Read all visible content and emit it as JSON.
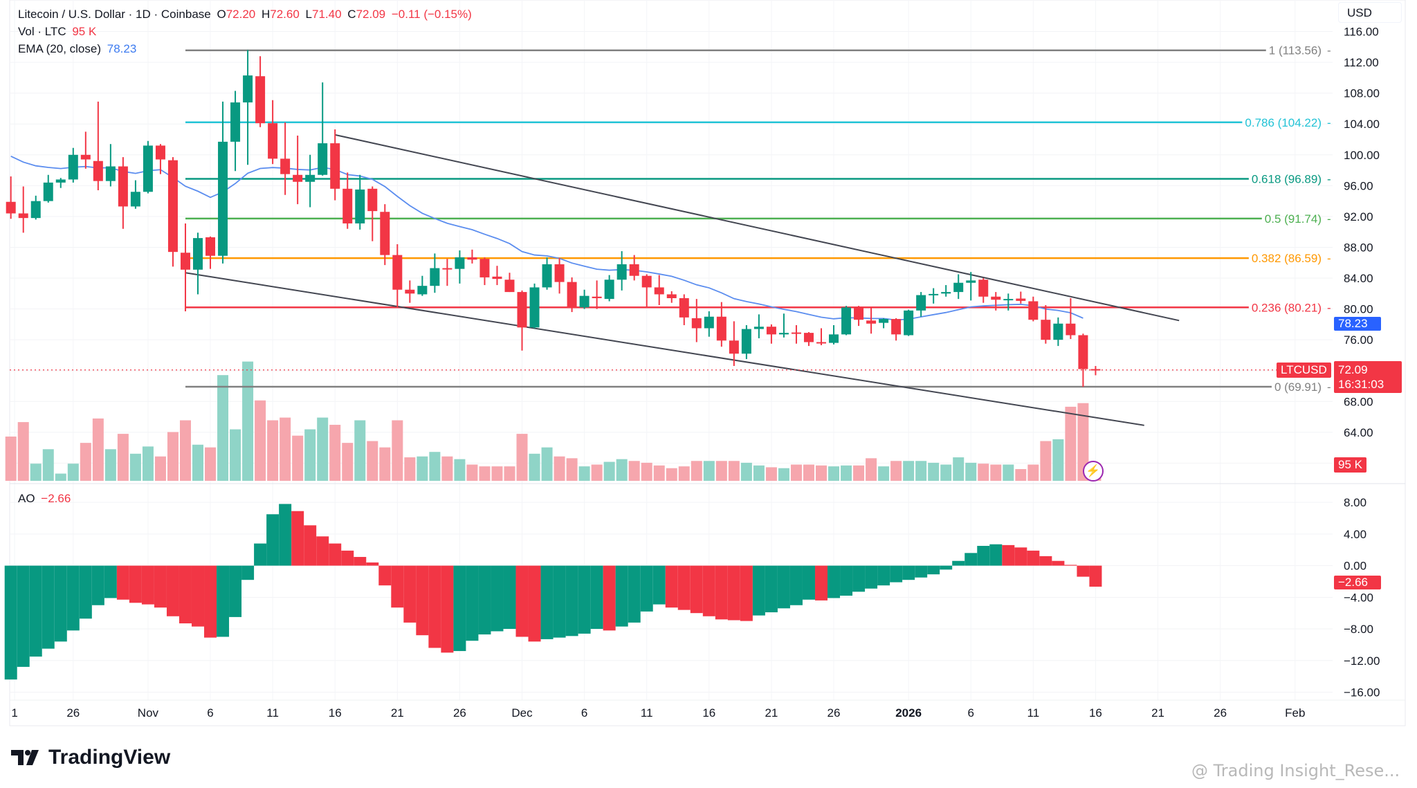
{
  "header": {
    "symbol": "Litecoin / U.S. Dollar · 1D · Coinbase",
    "o_label": "O",
    "o": "72.20",
    "h_label": "H",
    "h": "72.60",
    "l_label": "L",
    "l": "71.40",
    "c_label": "C",
    "c": "72.09",
    "change": "−0.11 (−0.15%)"
  },
  "volume_legend": {
    "label": "Vol · LTC",
    "value": "95 K"
  },
  "ema_legend": {
    "label": "EMA (20, close)",
    "value": "78.23"
  },
  "ao_legend": {
    "label": "AO",
    "value": "−2.66"
  },
  "currency_button": "USD",
  "price_tags": {
    "ema": "78.23",
    "symbol": "LTCUSD",
    "last": "72.09",
    "countdown": "16:31:03",
    "volume": "95 K",
    "ao": "−2.66"
  },
  "branding": {
    "logo": "TradingView",
    "watermark": "@ Trading Insight_Rese..."
  },
  "colors": {
    "up": "#089981",
    "down": "#f23645",
    "ema": "#5b8def",
    "tag_blue": "#2962ff",
    "trendline": "#434651"
  },
  "chart_data": {
    "type": "candlestick",
    "title": "Litecoin / U.S. Dollar · 1D · Coinbase",
    "start_date": "2025-10-21",
    "end_date": "2026-01-16",
    "ohlc": [
      [
        93.9,
        97.2,
        91.7,
        92.4
      ],
      [
        92.4,
        95.9,
        89.9,
        91.8
      ],
      [
        91.8,
        94.7,
        91.6,
        94.0
      ],
      [
        94.0,
        97.4,
        93.8,
        96.4
      ],
      [
        96.4,
        97.0,
        95.7,
        96.8
      ],
      [
        96.8,
        100.9,
        96.4,
        100.0
      ],
      [
        100.0,
        103.0,
        98.2,
        99.4
      ],
      [
        99.2,
        106.9,
        95.4,
        96.6
      ],
      [
        96.6,
        101.4,
        95.9,
        98.5
      ],
      [
        98.5,
        99.7,
        90.4,
        93.3
      ],
      [
        93.3,
        96.7,
        93.0,
        95.2
      ],
      [
        95.2,
        101.8,
        95.0,
        101.2
      ],
      [
        101.2,
        101.4,
        97.5,
        99.4
      ],
      [
        99.3,
        99.7,
        85.5,
        87.4
      ],
      [
        87.3,
        91.1,
        79.7,
        85.1
      ],
      [
        85.1,
        89.9,
        81.9,
        89.2
      ],
      [
        89.3,
        89.4,
        85.2,
        86.9
      ],
      [
        86.9,
        106.9,
        85.9,
        101.7
      ],
      [
        101.7,
        108.3,
        97.9,
        106.8
      ],
      [
        106.8,
        113.6,
        98.7,
        110.3
      ],
      [
        110.2,
        112.8,
        103.6,
        104.1
      ],
      [
        104.1,
        107.1,
        98.8,
        99.5
      ],
      [
        99.5,
        104.2,
        94.8,
        97.5
      ],
      [
        97.4,
        102.5,
        93.6,
        96.5
      ],
      [
        96.5,
        100.0,
        93.2,
        97.4
      ],
      [
        97.4,
        109.4,
        97.3,
        101.5
      ],
      [
        101.5,
        103.3,
        94.1,
        95.6
      ],
      [
        95.6,
        97.7,
        90.4,
        91.1
      ],
      [
        91.1,
        97.4,
        90.3,
        95.5
      ],
      [
        95.6,
        95.9,
        88.8,
        92.7
      ],
      [
        92.6,
        93.6,
        85.7,
        87.0
      ],
      [
        87.0,
        88.4,
        80.1,
        82.5
      ],
      [
        82.5,
        83.7,
        80.8,
        82.0
      ],
      [
        81.9,
        84.3,
        81.7,
        83.0
      ],
      [
        83.0,
        87.2,
        82.1,
        85.3
      ],
      [
        85.3,
        86.5,
        83.0,
        85.2
      ],
      [
        85.2,
        87.6,
        83.3,
        86.7
      ],
      [
        86.7,
        87.7,
        85.9,
        86.4
      ],
      [
        86.5,
        86.7,
        83.1,
        84.1
      ],
      [
        84.2,
        85.6,
        83.1,
        83.9
      ],
      [
        83.8,
        84.7,
        82.2,
        82.2
      ],
      [
        82.2,
        82.4,
        74.6,
        77.6
      ],
      [
        77.6,
        83.3,
        77.5,
        82.8
      ],
      [
        82.8,
        86.7,
        82.5,
        85.8
      ],
      [
        85.8,
        86.6,
        82.0,
        83.5
      ],
      [
        83.5,
        84.1,
        79.6,
        80.2
      ],
      [
        80.2,
        82.5,
        80.0,
        81.7
      ],
      [
        81.6,
        83.7,
        80.0,
        81.4
      ],
      [
        81.3,
        84.4,
        81.0,
        83.8
      ],
      [
        83.8,
        87.5,
        82.4,
        85.8
      ],
      [
        85.8,
        87.0,
        83.7,
        84.3
      ],
      [
        84.3,
        84.5,
        80.2,
        82.8
      ],
      [
        82.8,
        84.4,
        80.5,
        81.9
      ],
      [
        81.9,
        82.3,
        80.8,
        81.4
      ],
      [
        81.4,
        81.9,
        77.9,
        78.9
      ],
      [
        78.8,
        81.3,
        75.7,
        77.5
      ],
      [
        77.5,
        79.7,
        76.4,
        79.0
      ],
      [
        79.0,
        80.9,
        75.1,
        75.9
      ],
      [
        75.9,
        78.4,
        72.6,
        74.2
      ],
      [
        74.2,
        77.9,
        73.5,
        77.4
      ],
      [
        77.4,
        79.3,
        76.2,
        77.7
      ],
      [
        77.7,
        78.0,
        75.5,
        76.7
      ],
      [
        76.7,
        79.4,
        76.3,
        76.9
      ],
      [
        76.95,
        77.9,
        75.5,
        76.9
      ],
      [
        76.9,
        77.0,
        75.2,
        75.7
      ],
      [
        75.7,
        77.5,
        75.3,
        75.6
      ],
      [
        75.6,
        77.9,
        75.4,
        76.7
      ],
      [
        76.7,
        80.4,
        76.6,
        80.2
      ],
      [
        80.2,
        80.4,
        77.8,
        78.6
      ],
      [
        78.5,
        80.1,
        76.8,
        78.1
      ],
      [
        78.2,
        78.8,
        77.5,
        78.7
      ],
      [
        78.7,
        78.8,
        75.9,
        76.7
      ],
      [
        76.6,
        79.9,
        76.5,
        79.8
      ],
      [
        79.8,
        82.2,
        79.0,
        81.8
      ],
      [
        81.86,
        82.7,
        80.7,
        81.95
      ],
      [
        82.0,
        83.1,
        81.6,
        82.2
      ],
      [
        82.2,
        84.5,
        81.3,
        83.4
      ],
      [
        83.4,
        84.8,
        81.1,
        83.7
      ],
      [
        83.8,
        84.0,
        80.8,
        81.6
      ],
      [
        81.6,
        82.2,
        79.8,
        81.2
      ],
      [
        81.2,
        82.0,
        79.8,
        81.3
      ],
      [
        81.35,
        82.25,
        80.7,
        81.05
      ],
      [
        81.0,
        81.6,
        78.4,
        78.6
      ],
      [
        78.6,
        80.5,
        75.5,
        76.0
      ],
      [
        76.0,
        78.9,
        75.2,
        78.1
      ],
      [
        78.1,
        81.4,
        76.1,
        76.6
      ],
      [
        76.6,
        76.8,
        69.9,
        72.2
      ],
      [
        72.2,
        72.6,
        71.4,
        72.09
      ]
    ],
    "volume_k": [
      245,
      325,
      95,
      175,
      40,
      95,
      210,
      345,
      175,
      260,
      150,
      190,
      135,
      270,
      335,
      200,
      185,
      585,
      285,
      660,
      445,
      335,
      350,
      250,
      285,
      350,
      310,
      210,
      335,
      220,
      185,
      335,
      130,
      135,
      160,
      135,
      120,
      90,
      80,
      80,
      80,
      260,
      150,
      185,
      135,
      125,
      80,
      90,
      105,
      120,
      110,
      100,
      85,
      70,
      80,
      110,
      110,
      110,
      110,
      100,
      85,
      75,
      70,
      90,
      90,
      85,
      80,
      85,
      85,
      125,
      80,
      110,
      110,
      110,
      100,
      90,
      130,
      100,
      95,
      90,
      90,
      65,
      90,
      220,
      230,
      410,
      430,
      95
    ],
    "ao": [
      -14.4,
      -12.8,
      -11.5,
      -10.5,
      -9.6,
      -8.2,
      -6.7,
      -5.0,
      -4.1,
      -4.3,
      -4.7,
      -4.9,
      -5.3,
      -6.4,
      -7.3,
      -7.7,
      -9.1,
      -9.0,
      -6.5,
      -1.8,
      2.8,
      6.5,
      7.8,
      6.9,
      5.1,
      3.7,
      2.8,
      1.9,
      1.1,
      0.4,
      -2.5,
      -5.3,
      -7.2,
      -8.8,
      -10.4,
      -11.0,
      -10.8,
      -9.5,
      -8.7,
      -8.3,
      -8.0,
      -9.0,
      -9.6,
      -9.3,
      -9.1,
      -8.9,
      -8.6,
      -8.0,
      -8.2,
      -7.7,
      -7.2,
      -5.8,
      -4.9,
      -5.3,
      -5.6,
      -6.0,
      -6.4,
      -6.8,
      -6.9,
      -7.0,
      -6.3,
      -5.9,
      -5.4,
      -5.0,
      -4.3,
      -4.4,
      -4.1,
      -3.8,
      -3.3,
      -2.9,
      -2.5,
      -2.1,
      -1.8,
      -1.5,
      -1.1,
      -0.5,
      0.6,
      1.6,
      2.5,
      2.7,
      2.6,
      2.3,
      1.9,
      1.2,
      0.6,
      0.1,
      -1.4,
      -2.66
    ],
    "ema_period": 20,
    "ema_seed": 100.6,
    "fib_levels": [
      {
        "label": "1 (113.56)",
        "price": 113.56,
        "color": "#808080"
      },
      {
        "label": "0.786 (104.22)",
        "price": 104.22,
        "color": "#22c3d6"
      },
      {
        "label": "0.618 (96.89)",
        "price": 96.89,
        "color": "#089981"
      },
      {
        "label": "0.5 (91.74)",
        "price": 91.74,
        "color": "#4caf50"
      },
      {
        "label": "0.382 (86.59)",
        "price": 86.59,
        "color": "#ff9800"
      },
      {
        "label": "0.236 (80.21)",
        "price": 80.21,
        "color": "#f23645"
      },
      {
        "label": "0 (69.91)",
        "price": 69.91,
        "color": "#808080"
      }
    ],
    "fib_start_index": 14,
    "trendlines": [
      {
        "name": "upper",
        "from": [
          26,
          102.6
        ],
        "to": [
          93.7,
          78.5
        ]
      },
      {
        "name": "lower",
        "from": [
          14,
          84.7
        ],
        "to": [
          90.9,
          64.9
        ]
      }
    ],
    "price_ticks": [
      "116.00",
      "112.00",
      "108.00",
      "104.00",
      "100.00",
      "96.00",
      "92.00",
      "88.00",
      "84.00",
      "80.00",
      "76.00",
      "68.00",
      "64.00"
    ],
    "ao_ticks": [
      "8.00",
      "4.00",
      "0.00",
      "−4.00",
      "−8.00",
      "−12.00",
      "−16.00"
    ],
    "x_ticks": [
      {
        "label": "1",
        "index": 0.3
      },
      {
        "label": "26",
        "index": 5
      },
      {
        "label": "Nov",
        "index": 11
      },
      {
        "label": "6",
        "index": 16
      },
      {
        "label": "11",
        "index": 21
      },
      {
        "label": "16",
        "index": 26
      },
      {
        "label": "21",
        "index": 31
      },
      {
        "label": "26",
        "index": 36
      },
      {
        "label": "Dec",
        "index": 41
      },
      {
        "label": "6",
        "index": 46
      },
      {
        "label": "11",
        "index": 51
      },
      {
        "label": "16",
        "index": 56
      },
      {
        "label": "21",
        "index": 61
      },
      {
        "label": "26",
        "index": 66
      },
      {
        "label": "2026",
        "index": 72,
        "bold": true
      },
      {
        "label": "6",
        "index": 77
      },
      {
        "label": "11",
        "index": 82
      },
      {
        "label": "16",
        "index": 87
      },
      {
        "label": "21",
        "index": 92
      },
      {
        "label": "26",
        "index": 97
      },
      {
        "label": "Feb",
        "index": 103
      }
    ],
    "price_range_visible": [
      62,
      116
    ],
    "ao_range_visible": [
      -17,
      9
    ]
  }
}
